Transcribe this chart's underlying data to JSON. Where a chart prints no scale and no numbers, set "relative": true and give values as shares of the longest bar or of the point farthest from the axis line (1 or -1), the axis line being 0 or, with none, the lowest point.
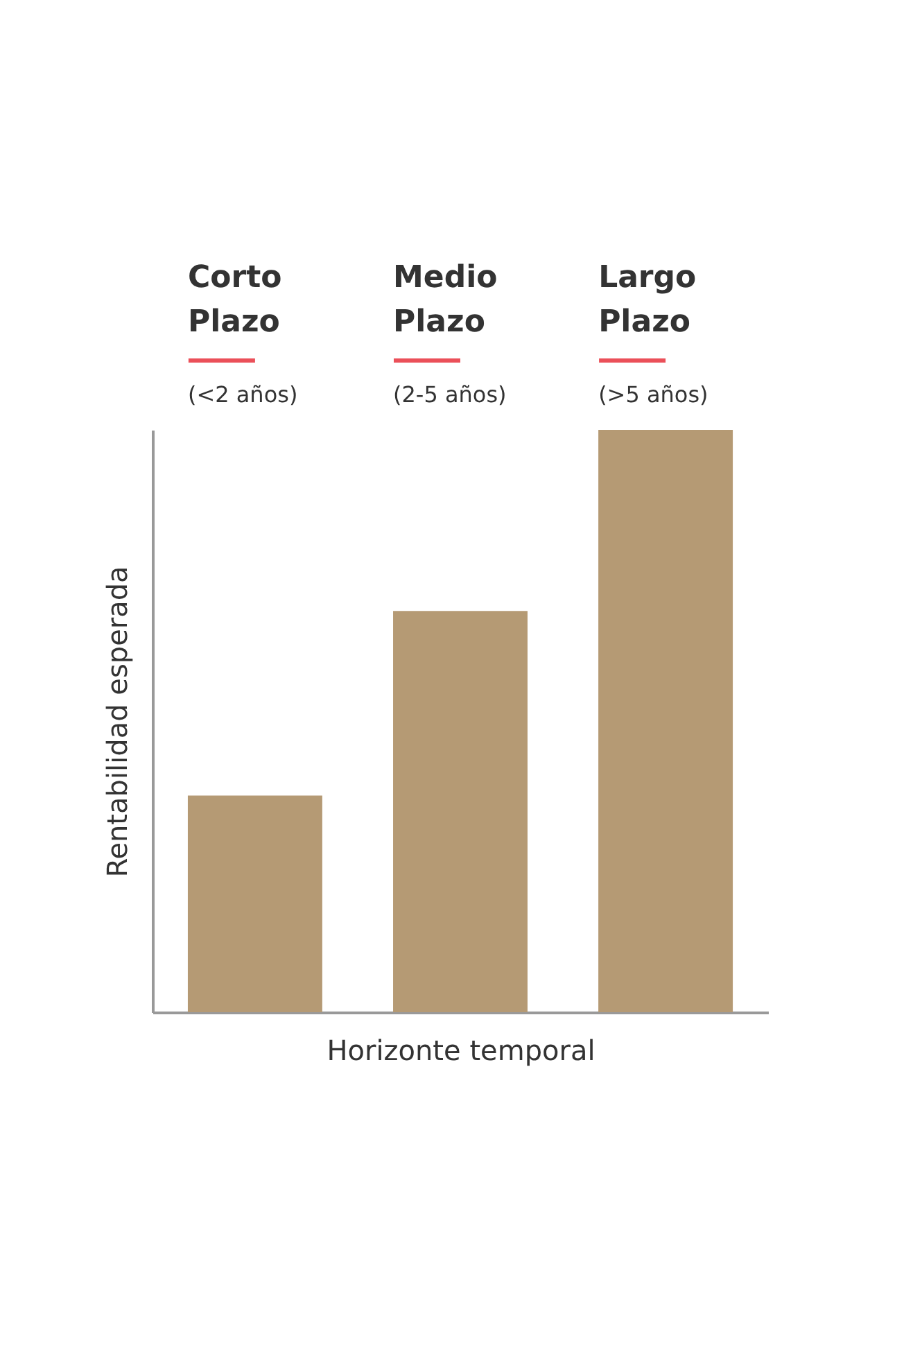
{
  "chart_data": {
    "type": "bar",
    "relative": true,
    "categories": [
      "Corto Plazo",
      "Medio Plazo",
      "Largo Plazo"
    ],
    "values": [
      0.372,
      0.689,
      1
    ],
    "color": "#b59a74",
    "annotations": [
      "(<2 años)",
      "(2-5 años)",
      "(>5 años)"
    ],
    "xlabel": "Horizonte temporal",
    "ylabel": "Rentabilidad esperada",
    "tick_labels": false
  }
}
